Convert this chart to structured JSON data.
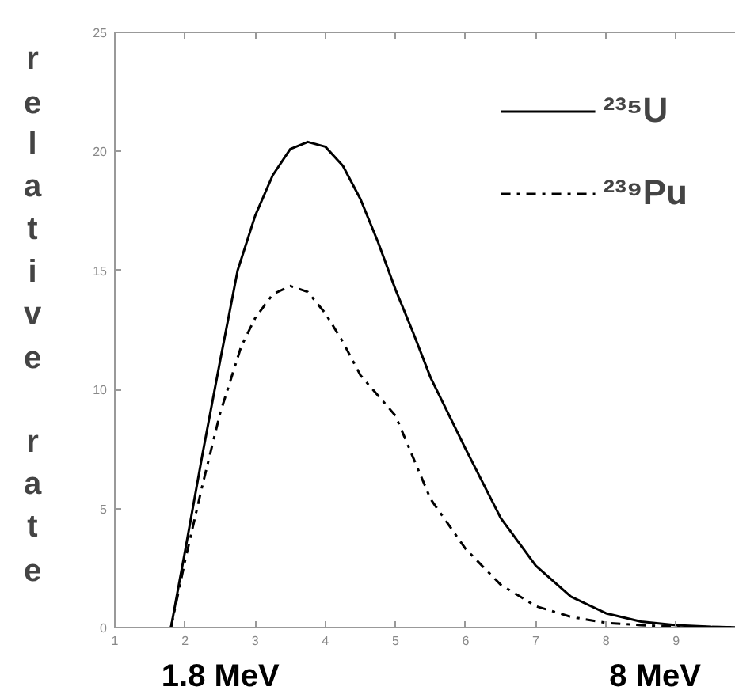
{
  "chart_data": {
    "type": "line",
    "ylabel": "relative rate",
    "xlim": [
      1,
      9.85
    ],
    "ylim": [
      0,
      25
    ],
    "xticks": [
      1,
      2,
      3,
      4,
      5,
      6,
      7,
      8,
      9
    ],
    "yticks": [
      0,
      5,
      10,
      15,
      20,
      25
    ],
    "legend": "top right",
    "series": [
      {
        "name": "²³⁵U",
        "color": "#000000",
        "line_style": "solid",
        "x": [
          1.8,
          2.0,
          2.25,
          2.5,
          2.75,
          3.0,
          3.25,
          3.5,
          3.75,
          4.0,
          4.25,
          4.5,
          4.75,
          5.0,
          5.25,
          5.5,
          6.0,
          6.5,
          7.0,
          7.5,
          8.0,
          8.5,
          9.0,
          9.5,
          9.85
        ],
        "values": [
          0,
          3.2,
          7.3,
          11.2,
          15.0,
          17.3,
          19.0,
          20.1,
          20.4,
          20.2,
          19.4,
          18.0,
          16.2,
          14.2,
          12.4,
          10.5,
          7.5,
          4.6,
          2.6,
          1.3,
          0.6,
          0.25,
          0.1,
          0.03,
          0.01
        ]
      },
      {
        "name": "²³⁹Pu",
        "color": "#000000",
        "line_style": "dashdot",
        "x": [
          1.8,
          2.0,
          2.25,
          2.5,
          2.8,
          3.0,
          3.25,
          3.5,
          3.75,
          4.0,
          4.25,
          4.5,
          5.0,
          5.5,
          6.0,
          6.5,
          7.0,
          7.5,
          8.0,
          8.5,
          9.0,
          9.85
        ],
        "values": [
          0,
          2.8,
          6.0,
          9.0,
          11.8,
          13.0,
          14.0,
          14.35,
          14.1,
          13.2,
          12.0,
          10.6,
          8.9,
          5.4,
          3.3,
          1.8,
          0.9,
          0.45,
          0.2,
          0.1,
          0.04,
          0.01
        ]
      }
    ],
    "annotations": [
      "1.8 MeV",
      "8 MeV"
    ]
  }
}
